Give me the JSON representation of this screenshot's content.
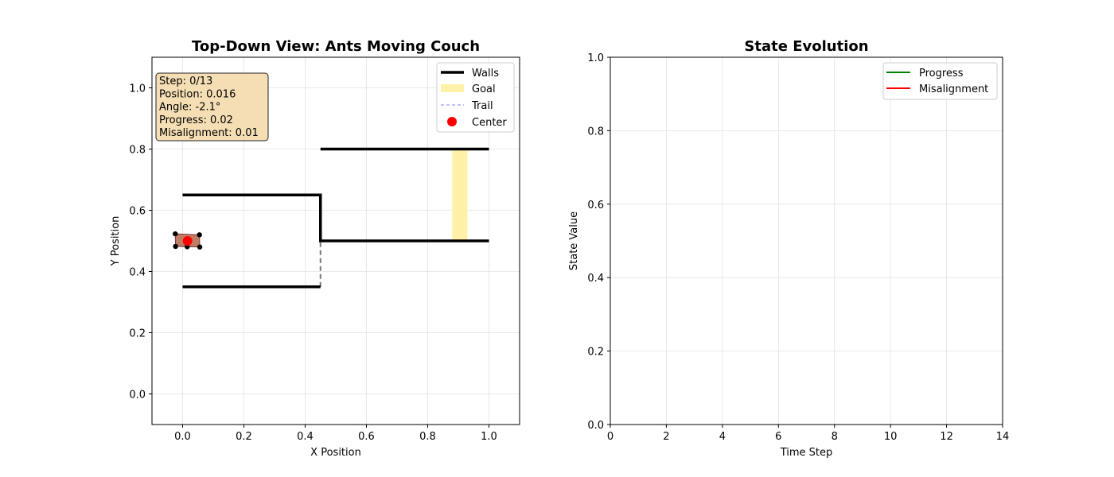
{
  "chart_data": [
    {
      "type": "scatter",
      "title": "Top-Down View: Ants Moving Couch",
      "xlabel": "X Position",
      "ylabel": "Y Position",
      "xlim": [
        -0.1,
        1.1
      ],
      "ylim": [
        -0.1,
        1.1
      ],
      "xticks": [
        0.0,
        0.2,
        0.4,
        0.6,
        0.8,
        1.0
      ],
      "xtick_labels": [
        "0.0",
        "0.2",
        "0.4",
        "0.6",
        "0.8",
        "1.0"
      ],
      "yticks": [
        0.0,
        0.2,
        0.4,
        0.6,
        0.8,
        1.0
      ],
      "ytick_labels": [
        "0.0",
        "0.2",
        "0.4",
        "0.6",
        "0.8",
        "1.0"
      ],
      "grid": true,
      "legend_position": "top-right",
      "legend": [
        "Walls",
        "Goal",
        "Trail",
        "Center"
      ],
      "walls": [
        [
          [
            0.0,
            0.65
          ],
          [
            0.45,
            0.65
          ],
          [
            0.45,
            0.5
          ],
          [
            1.0,
            0.5
          ]
        ],
        [
          [
            0.0,
            0.35
          ],
          [
            0.45,
            0.35
          ]
        ],
        [
          [
            0.45,
            0.8
          ],
          [
            1.0,
            0.8
          ]
        ]
      ],
      "doorway": [
        [
          0.45,
          0.35
        ],
        [
          0.45,
          0.5
        ]
      ],
      "goal": {
        "x": [
          0.88,
          0.93
        ],
        "y": [
          0.5,
          0.8
        ],
        "color": "#fff2a8"
      },
      "couch": {
        "center": [
          0.016,
          0.5
        ],
        "corners": [
          [
            -0.024,
            0.523
          ],
          [
            0.055,
            0.52
          ],
          [
            0.056,
            0.48
          ],
          [
            -0.023,
            0.482
          ]
        ],
        "ant_points": [
          [
            0.015,
            0.481
          ]
        ],
        "color": "#b5654a"
      },
      "info_box": [
        "Step: 0/13",
        "Position: 0.016",
        "Angle: -2.1°",
        "Progress: 0.02",
        "Misalignment: 0.01"
      ],
      "colors": {
        "walls": "#000000",
        "trail": "#8080e0",
        "center": "#ff0000",
        "info_bg": "#f5deb3"
      }
    },
    {
      "type": "line",
      "title": "State Evolution",
      "xlabel": "Time Step",
      "ylabel": "State Value",
      "xlim": [
        0,
        14
      ],
      "ylim": [
        0,
        1
      ],
      "xticks": [
        0,
        2,
        4,
        6,
        8,
        10,
        12,
        14
      ],
      "xtick_labels": [
        "0",
        "2",
        "4",
        "6",
        "8",
        "10",
        "12",
        "14"
      ],
      "yticks": [
        0.0,
        0.2,
        0.4,
        0.6,
        0.8,
        1.0
      ],
      "ytick_labels": [
        "0.0",
        "0.2",
        "0.4",
        "0.6",
        "0.8",
        "1.0"
      ],
      "grid": true,
      "legend_position": "top-right",
      "series": [
        {
          "name": "Progress",
          "color": "#008000",
          "x": [],
          "y": []
        },
        {
          "name": "Misalignment",
          "color": "#ff0000",
          "x": [],
          "y": []
        }
      ]
    }
  ]
}
